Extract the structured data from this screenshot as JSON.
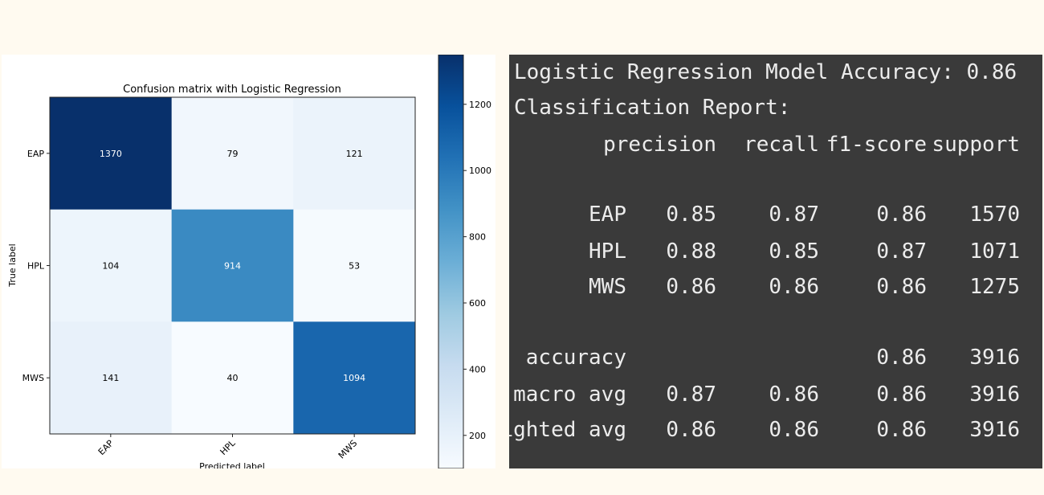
{
  "chart_data": [
    {
      "type": "heatmap",
      "title": "Confusion matrix with Logistic Regression",
      "xlabel": "Predicted label",
      "ylabel": "True label",
      "x_categories": [
        "EAP",
        "HPL",
        "MWS"
      ],
      "y_categories": [
        "EAP",
        "HPL",
        "MWS"
      ],
      "values": [
        [
          1370,
          79,
          121
        ],
        [
          104,
          914,
          53
        ],
        [
          141,
          40,
          1094
        ]
      ],
      "colormap": "Blues",
      "colorbar_ticks": [
        200,
        400,
        600,
        800,
        1000,
        1200
      ],
      "colorbar_range": [
        100,
        1350
      ]
    },
    {
      "type": "table",
      "accuracy_line": "Logistic Regression Model Accuracy: 0.86",
      "report_title": "Classification Report:",
      "columns": [
        "precision",
        "recall",
        "f1-score",
        "support"
      ],
      "rows": [
        {
          "label": "EAP",
          "values": [
            "0.85",
            "0.87",
            "0.86",
            "1570"
          ]
        },
        {
          "label": "HPL",
          "values": [
            "0.88",
            "0.85",
            "0.87",
            "1071"
          ]
        },
        {
          "label": "MWS",
          "values": [
            "0.86",
            "0.86",
            "0.86",
            "1275"
          ]
        },
        {
          "label": "accuracy",
          "values": [
            "",
            "",
            "0.86",
            "3916"
          ]
        },
        {
          "label": "macro avg",
          "values": [
            "0.87",
            "0.86",
            "0.86",
            "3916"
          ]
        },
        {
          "label": "weighted avg",
          "values": [
            "0.86",
            "0.86",
            "0.86",
            "3916"
          ]
        }
      ],
      "background_color": "#3a3a3a",
      "text_color": "#ececec"
    }
  ]
}
